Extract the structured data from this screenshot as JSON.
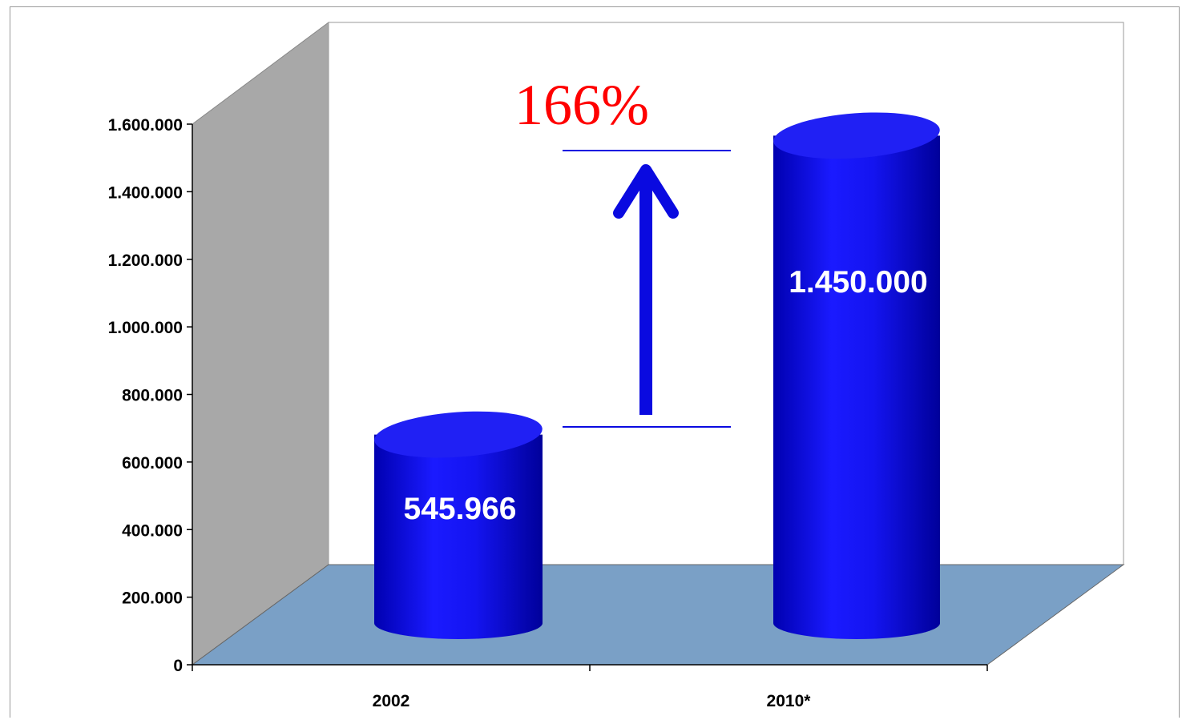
{
  "chart_data": {
    "type": "bar",
    "style": "3d-cylinder",
    "categories": [
      "2002",
      "2010*"
    ],
    "values": [
      545966,
      1450000
    ],
    "data_labels": [
      "545.966",
      "1.450.000"
    ],
    "ylim": [
      0,
      1600000
    ],
    "yticks": [
      0,
      200000,
      400000,
      600000,
      800000,
      1000000,
      1200000,
      1400000,
      1600000
    ],
    "ytick_labels": [
      "0",
      "200.000",
      "400.000",
      "600.000",
      "800.000",
      "1.000.000",
      "1.200.000",
      "1.400.000",
      "1.600.000"
    ],
    "grid": false,
    "annotation": {
      "text": "166%",
      "type": "increase-arrow"
    },
    "colors": {
      "bar": "#1010e8",
      "bar_top": "#2020f4",
      "floor": "#7aa0c6",
      "side_wall": "#a8a8a8",
      "back_wall": "#ffffff",
      "annotation": "#ff0000",
      "arrow": "#0a0ae0"
    }
  }
}
